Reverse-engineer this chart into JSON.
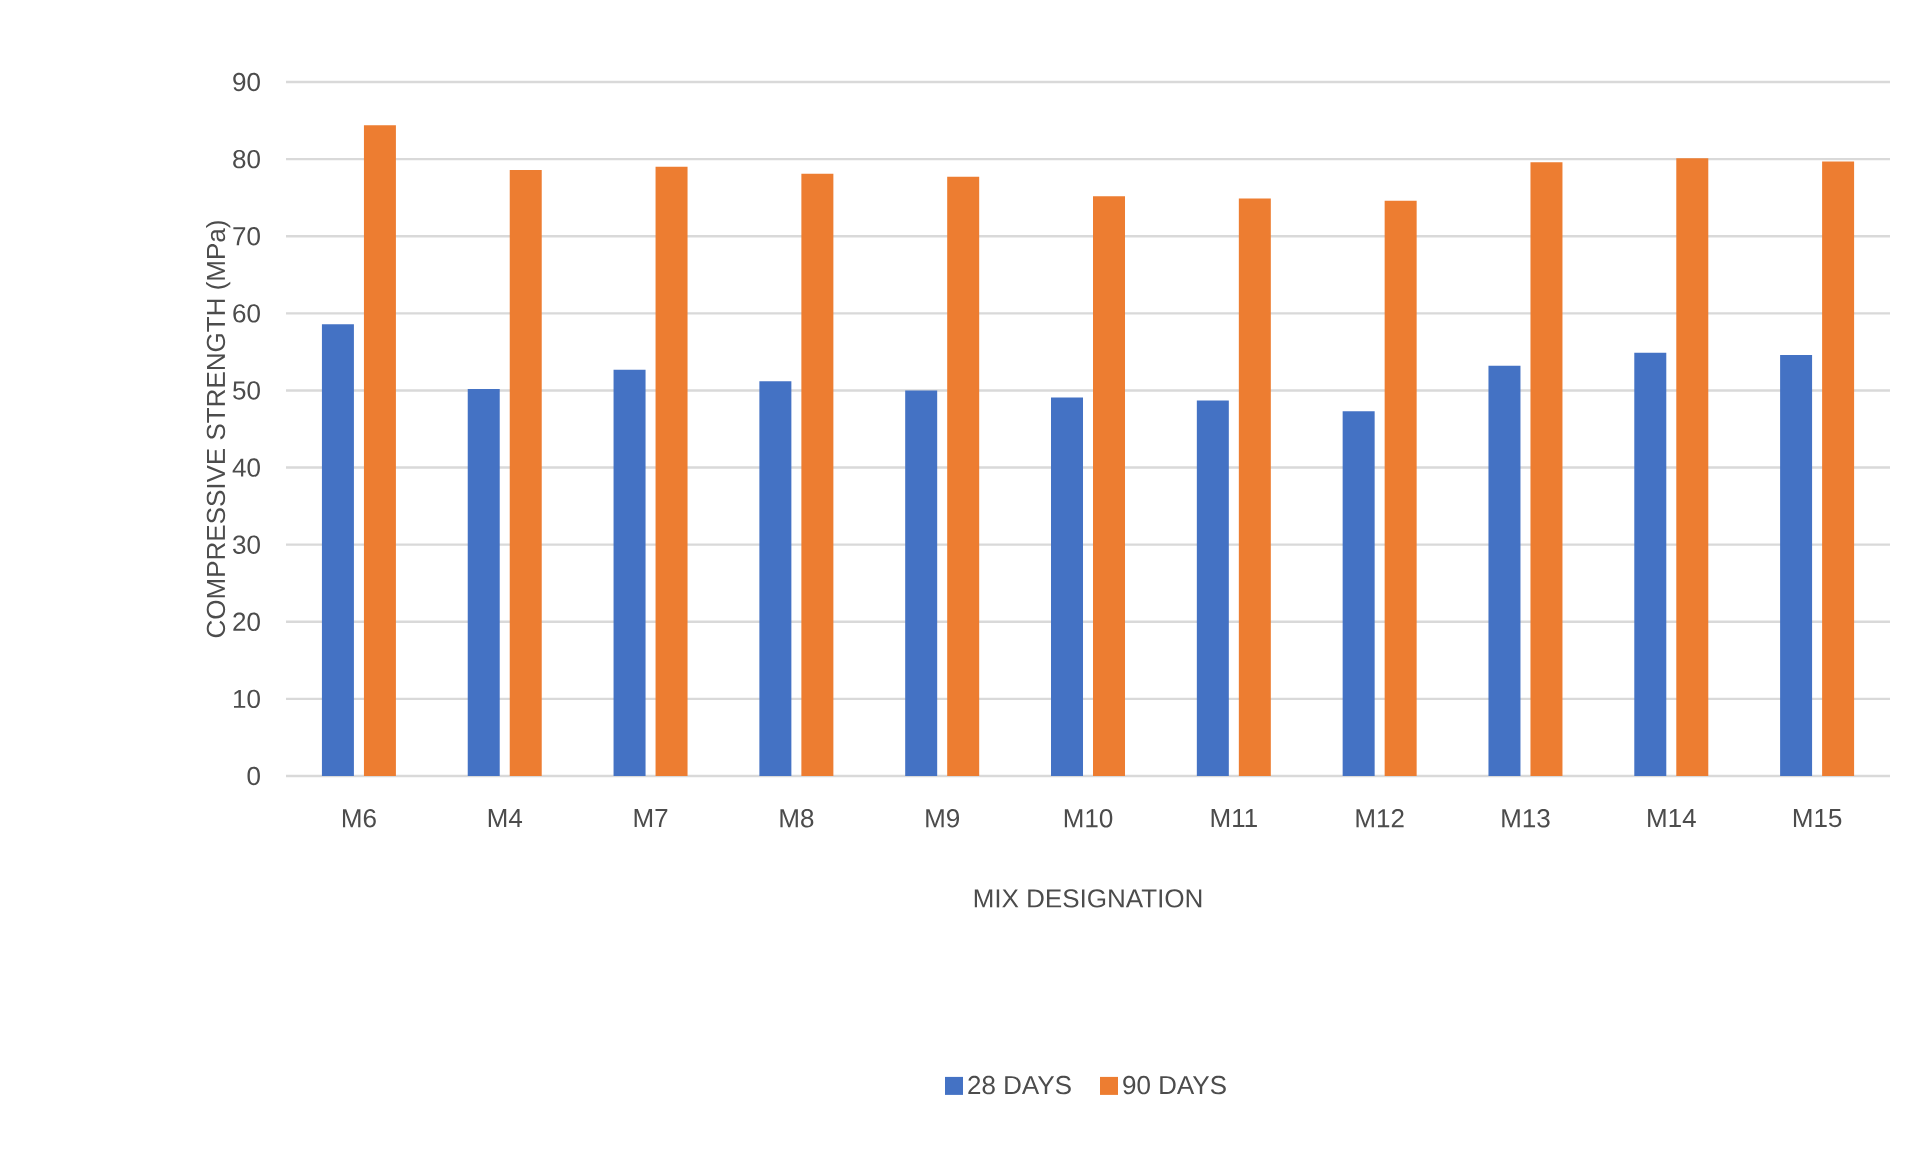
{
  "chart_data": {
    "type": "bar",
    "xlabel": "MIX DESIGNATION",
    "ylabel": "COMPRESSIVE STRENGTH (MPa)",
    "categories": [
      "M6",
      "M4",
      "M7",
      "M8",
      "M9",
      "M10",
      "M11",
      "M12",
      "M13",
      "M14",
      "M15"
    ],
    "series": [
      {
        "name": "28 DAYS",
        "color": "#4472c4",
        "values": [
          58.6,
          50.2,
          52.7,
          51.2,
          50.0,
          49.1,
          48.7,
          47.3,
          53.2,
          54.9,
          54.6
        ]
      },
      {
        "name": "90 DAYS",
        "color": "#ed7d31",
        "values": [
          84.4,
          78.6,
          79.0,
          78.1,
          77.7,
          75.2,
          74.9,
          74.6,
          79.6,
          80.1,
          79.7
        ]
      }
    ],
    "ylim": [
      0,
      90
    ],
    "yticks": [
      0,
      10,
      20,
      30,
      40,
      50,
      60,
      70,
      80,
      90
    ],
    "grid": "y",
    "legend": "bottom"
  }
}
